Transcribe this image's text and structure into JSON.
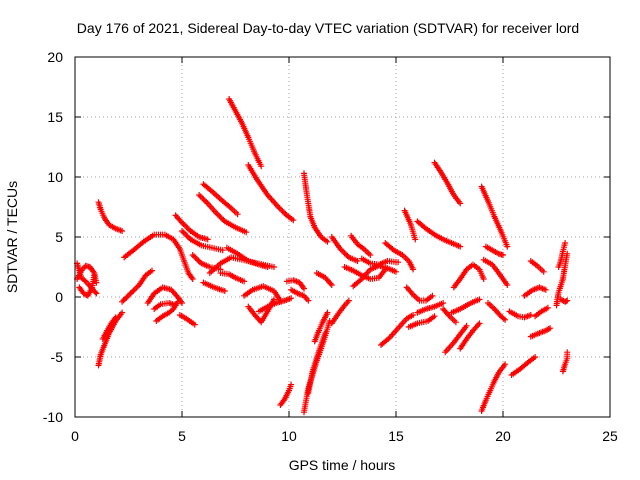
{
  "chart_data": {
    "type": "scatter",
    "title": "Day 176 of 2021, Sidereal Day-to-day VTEC variation (SDTVAR) for receiver lord",
    "xlabel": "GPS time / hours",
    "ylabel": "SDTVAR / TECUs",
    "xlim": [
      0,
      25
    ],
    "ylim": [
      -10,
      20
    ],
    "xticks": [
      "0",
      "5",
      "10",
      "15",
      "20",
      "25"
    ],
    "yticks": [
      "-10",
      "-5",
      "0",
      "5",
      "10",
      "15",
      "20"
    ],
    "xtick_values": [
      0,
      5,
      10,
      15,
      20,
      25
    ],
    "ytick_values": [
      -10,
      -5,
      0,
      5,
      10,
      15,
      20
    ],
    "grid": true,
    "marker": "+",
    "series_color": "#ff0000",
    "segments": [
      [
        [
          0.1,
          2.8
        ],
        [
          0.2,
          2.2
        ],
        [
          0.3,
          1.6
        ],
        [
          0.5,
          1.3
        ],
        [
          0.7,
          0.9
        ],
        [
          0.9,
          0.5
        ],
        [
          1.0,
          0.3
        ]
      ],
      [
        [
          0.1,
          1.5
        ],
        [
          0.3,
          2.2
        ],
        [
          0.5,
          2.6
        ],
        [
          0.7,
          2.5
        ],
        [
          0.9,
          2.0
        ],
        [
          1.0,
          1.2
        ]
      ],
      [
        [
          0.2,
          0.8
        ],
        [
          0.4,
          0.3
        ],
        [
          0.6,
          0.1
        ],
        [
          0.8,
          0.8
        ],
        [
          0.9,
          1.8
        ]
      ],
      [
        [
          1.1,
          7.9
        ],
        [
          1.2,
          7.3
        ],
        [
          1.4,
          6.5
        ],
        [
          1.6,
          6.0
        ],
        [
          1.9,
          5.7
        ],
        [
          2.2,
          5.5
        ]
      ],
      [
        [
          1.1,
          -5.7
        ],
        [
          1.2,
          -4.8
        ],
        [
          1.4,
          -3.9
        ],
        [
          1.6,
          -3.0
        ],
        [
          1.9,
          -2.0
        ],
        [
          2.2,
          -1.3
        ]
      ],
      [
        [
          1.3,
          -3.5
        ],
        [
          1.5,
          -2.8
        ],
        [
          1.7,
          -2.2
        ],
        [
          1.9,
          -1.7
        ]
      ],
      [
        [
          2.2,
          -0.4
        ],
        [
          2.6,
          0.3
        ],
        [
          3.0,
          1.0
        ],
        [
          3.3,
          1.8
        ],
        [
          3.6,
          2.2
        ]
      ],
      [
        [
          2.3,
          3.3
        ],
        [
          2.8,
          4.0
        ],
        [
          3.2,
          4.6
        ],
        [
          3.7,
          5.2
        ],
        [
          4.2,
          5.2
        ],
        [
          4.6,
          4.8
        ],
        [
          4.9,
          4.0
        ],
        [
          5.1,
          3.0
        ],
        [
          5.3,
          2.0
        ],
        [
          5.5,
          1.5
        ]
      ],
      [
        [
          3.4,
          -0.5
        ],
        [
          3.7,
          0.3
        ],
        [
          4.1,
          0.8
        ],
        [
          4.5,
          0.6
        ],
        [
          4.8,
          0.0
        ],
        [
          5.0,
          -0.5
        ]
      ],
      [
        [
          3.7,
          -1.0
        ],
        [
          4.0,
          -0.6
        ],
        [
          4.4,
          -0.5
        ],
        [
          4.7,
          -0.7
        ]
      ],
      [
        [
          3.8,
          -2.0
        ],
        [
          4.1,
          -1.6
        ],
        [
          4.4,
          -1.3
        ],
        [
          4.6,
          -1.0
        ],
        [
          4.8,
          -0.4
        ]
      ],
      [
        [
          4.9,
          -1.5
        ],
        [
          5.2,
          -1.8
        ],
        [
          5.6,
          -2.3
        ]
      ],
      [
        [
          4.7,
          6.8
        ],
        [
          5.0,
          6.2
        ],
        [
          5.4,
          5.5
        ],
        [
          5.8,
          5.0
        ],
        [
          6.2,
          4.8
        ]
      ],
      [
        [
          5.0,
          5.5
        ],
        [
          5.4,
          4.8
        ],
        [
          5.9,
          4.3
        ],
        [
          6.4,
          4.1
        ],
        [
          6.9,
          3.9
        ]
      ],
      [
        [
          5.5,
          3.5
        ],
        [
          5.9,
          2.8
        ],
        [
          6.3,
          2.5
        ],
        [
          6.8,
          2.3
        ]
      ],
      [
        [
          6.0,
          9.4
        ],
        [
          6.4,
          8.8
        ],
        [
          6.9,
          8.0
        ],
        [
          7.3,
          7.4
        ],
        [
          7.6,
          6.9
        ]
      ],
      [
        [
          5.8,
          8.5
        ],
        [
          6.2,
          7.8
        ],
        [
          6.6,
          7.0
        ],
        [
          7.0,
          6.3
        ],
        [
          7.5,
          5.8
        ],
        [
          8.0,
          5.4
        ]
      ],
      [
        [
          6.0,
          1.2
        ],
        [
          6.5,
          0.8
        ],
        [
          7.0,
          0.5
        ]
      ],
      [
        [
          6.3,
          2.0
        ],
        [
          6.8,
          2.8
        ],
        [
          7.3,
          3.3
        ],
        [
          7.8,
          3.1
        ],
        [
          8.3,
          2.9
        ],
        [
          8.8,
          2.7
        ],
        [
          9.3,
          2.5
        ]
      ],
      [
        [
          6.8,
          2.0
        ],
        [
          7.2,
          1.9
        ],
        [
          7.5,
          1.6
        ],
        [
          7.9,
          1.3
        ]
      ],
      [
        [
          7.2,
          16.5
        ],
        [
          7.5,
          15.5
        ],
        [
          7.8,
          14.5
        ],
        [
          8.1,
          13.3
        ],
        [
          8.4,
          12.0
        ],
        [
          8.7,
          10.9
        ]
      ],
      [
        [
          7.1,
          4.1
        ],
        [
          7.6,
          3.6
        ],
        [
          8.1,
          3.0
        ],
        [
          8.6,
          2.7
        ],
        [
          9.0,
          2.5
        ]
      ],
      [
        [
          7.9,
          0.1
        ],
        [
          8.3,
          0.6
        ],
        [
          8.8,
          0.9
        ],
        [
          9.3,
          0.5
        ],
        [
          9.6,
          -0.3
        ]
      ],
      [
        [
          8.1,
          11.0
        ],
        [
          8.5,
          9.8
        ],
        [
          9.0,
          8.5
        ],
        [
          9.5,
          7.5
        ],
        [
          9.9,
          6.8
        ],
        [
          10.2,
          6.4
        ]
      ],
      [
        [
          8.1,
          -0.8
        ],
        [
          8.4,
          -1.5
        ],
        [
          8.7,
          -2.1
        ],
        [
          9.0,
          -1.2
        ],
        [
          9.3,
          -0.2
        ]
      ],
      [
        [
          8.6,
          -1.2
        ],
        [
          9.0,
          -0.8
        ],
        [
          9.4,
          -0.5
        ],
        [
          9.8,
          -0.3
        ],
        [
          10.1,
          -0.1
        ]
      ],
      [
        [
          9.6,
          -9.0
        ],
        [
          9.8,
          -8.5
        ],
        [
          10.0,
          -7.8
        ],
        [
          10.1,
          -7.3
        ]
      ],
      [
        [
          9.9,
          1.3
        ],
        [
          10.2,
          1.4
        ],
        [
          10.5,
          1.2
        ],
        [
          10.7,
          0.7
        ]
      ],
      [
        [
          10.1,
          0.6
        ],
        [
          10.4,
          0.3
        ],
        [
          10.7,
          0.1
        ],
        [
          10.9,
          -0.3
        ]
      ],
      [
        [
          10.7,
          10.3
        ],
        [
          10.8,
          9.0
        ],
        [
          10.9,
          7.8
        ],
        [
          11.0,
          6.7
        ],
        [
          11.2,
          5.8
        ],
        [
          11.5,
          5.0
        ],
        [
          11.8,
          4.6
        ]
      ],
      [
        [
          10.7,
          -9.6
        ],
        [
          10.8,
          -8.6
        ],
        [
          10.9,
          -7.6
        ],
        [
          11.1,
          -6.5
        ],
        [
          11.3,
          -5.3
        ],
        [
          11.5,
          -4.3
        ],
        [
          11.7,
          -3.2
        ],
        [
          11.9,
          -2.0
        ]
      ],
      [
        [
          10.9,
          -8.0
        ],
        [
          11.1,
          -6.2
        ],
        [
          11.4,
          -4.5
        ],
        [
          11.7,
          -3.0
        ]
      ],
      [
        [
          11.2,
          -3.7
        ],
        [
          11.4,
          -2.8
        ],
        [
          11.6,
          -2.0
        ],
        [
          11.8,
          -1.3
        ]
      ],
      [
        [
          11.3,
          2.0
        ],
        [
          11.7,
          1.6
        ],
        [
          12.0,
          1.0
        ]
      ],
      [
        [
          12.0,
          5.0
        ],
        [
          12.4,
          4.0
        ],
        [
          12.8,
          3.3
        ],
        [
          13.2,
          3.0
        ]
      ],
      [
        [
          12.0,
          -2.2
        ],
        [
          12.3,
          -1.4
        ],
        [
          12.6,
          -0.7
        ],
        [
          12.8,
          -0.3
        ]
      ],
      [
        [
          12.6,
          2.5
        ],
        [
          13.0,
          2.2
        ],
        [
          13.4,
          1.8
        ],
        [
          13.8,
          1.5
        ],
        [
          14.2,
          1.6
        ],
        [
          14.5,
          2.3
        ]
      ],
      [
        [
          12.9,
          5.1
        ],
        [
          13.2,
          4.4
        ],
        [
          13.5,
          4.0
        ],
        [
          13.8,
          3.5
        ]
      ],
      [
        [
          13.0,
          0.9
        ],
        [
          13.4,
          1.5
        ],
        [
          13.8,
          2.3
        ],
        [
          14.2,
          2.6
        ],
        [
          14.6,
          2.4
        ],
        [
          15.0,
          2.1
        ]
      ],
      [
        [
          13.4,
          3.2
        ],
        [
          13.8,
          2.8
        ],
        [
          14.2,
          2.7
        ],
        [
          14.6,
          3.0
        ],
        [
          15.1,
          2.9
        ]
      ],
      [
        [
          14.5,
          4.5
        ],
        [
          14.9,
          3.9
        ],
        [
          15.3,
          3.5
        ],
        [
          15.6,
          3.0
        ],
        [
          15.8,
          2.3
        ]
      ],
      [
        [
          14.3,
          -4.0
        ],
        [
          14.7,
          -3.4
        ],
        [
          15.1,
          -2.6
        ],
        [
          15.5,
          -1.8
        ],
        [
          15.8,
          -1.5
        ]
      ],
      [
        [
          15.4,
          7.2
        ],
        [
          15.7,
          6.0
        ],
        [
          15.9,
          4.8
        ]
      ],
      [
        [
          15.5,
          0.8
        ],
        [
          15.8,
          0.2
        ],
        [
          16.1,
          -0.3
        ],
        [
          16.4,
          -0.3
        ],
        [
          16.7,
          0.1
        ]
      ],
      [
        [
          15.6,
          -2.5
        ],
        [
          16.0,
          -2.2
        ],
        [
          16.5,
          -2.0
        ],
        [
          16.8,
          -1.6
        ]
      ],
      [
        [
          16.0,
          -1.3
        ],
        [
          16.4,
          -1.0
        ],
        [
          16.8,
          -0.8
        ],
        [
          17.2,
          -0.5
        ]
      ],
      [
        [
          16.0,
          6.3
        ],
        [
          16.4,
          5.7
        ],
        [
          16.8,
          5.2
        ],
        [
          17.2,
          4.8
        ],
        [
          17.6,
          4.5
        ],
        [
          18.0,
          4.2
        ]
      ],
      [
        [
          16.8,
          11.2
        ],
        [
          17.1,
          10.4
        ],
        [
          17.4,
          9.5
        ],
        [
          17.7,
          8.5
        ],
        [
          18.0,
          7.8
        ]
      ],
      [
        [
          17.2,
          -1.0
        ],
        [
          17.5,
          -1.6
        ],
        [
          17.8,
          -2.1
        ]
      ],
      [
        [
          17.3,
          -4.6
        ],
        [
          17.7,
          -3.8
        ],
        [
          18.0,
          -3.1
        ],
        [
          18.3,
          -2.4
        ]
      ],
      [
        [
          17.6,
          -1.3
        ],
        [
          18.0,
          -1.0
        ],
        [
          18.5,
          -0.5
        ],
        [
          18.9,
          -0.2
        ]
      ],
      [
        [
          17.7,
          0.8
        ],
        [
          18.0,
          1.5
        ],
        [
          18.3,
          2.3
        ],
        [
          18.6,
          2.7
        ],
        [
          18.9,
          2.3
        ],
        [
          19.1,
          1.5
        ]
      ],
      [
        [
          18.0,
          -4.3
        ],
        [
          18.3,
          -3.5
        ],
        [
          18.6,
          -2.8
        ],
        [
          18.9,
          -2.2
        ]
      ],
      [
        [
          19.0,
          9.2
        ],
        [
          19.3,
          8.0
        ],
        [
          19.6,
          6.7
        ],
        [
          19.9,
          5.5
        ],
        [
          20.2,
          4.2
        ]
      ],
      [
        [
          19.0,
          -9.5
        ],
        [
          19.2,
          -8.6
        ],
        [
          19.4,
          -7.8
        ],
        [
          19.6,
          -7.0
        ],
        [
          19.8,
          -6.3
        ],
        [
          20.1,
          -5.6
        ]
      ],
      [
        [
          19.1,
          3.1
        ],
        [
          19.5,
          2.7
        ],
        [
          19.8,
          2.0
        ],
        [
          20.2,
          1.0
        ]
      ],
      [
        [
          19.2,
          4.2
        ],
        [
          19.5,
          3.9
        ],
        [
          19.8,
          3.6
        ],
        [
          20.0,
          3.5
        ]
      ],
      [
        [
          19.3,
          -0.5
        ],
        [
          19.6,
          -1.0
        ],
        [
          19.9,
          -1.6
        ],
        [
          20.1,
          -1.9
        ]
      ],
      [
        [
          20.3,
          -1.2
        ],
        [
          20.7,
          -1.6
        ],
        [
          21.0,
          -1.7
        ],
        [
          21.3,
          -1.5
        ]
      ],
      [
        [
          20.4,
          -6.5
        ],
        [
          20.8,
          -6.0
        ],
        [
          21.2,
          -5.4
        ],
        [
          21.5,
          -5.0
        ]
      ],
      [
        [
          21.0,
          0.1
        ],
        [
          21.4,
          0.6
        ],
        [
          21.7,
          0.8
        ],
        [
          22.0,
          0.6
        ]
      ],
      [
        [
          21.3,
          3.0
        ],
        [
          21.6,
          2.6
        ],
        [
          21.9,
          2.1
        ]
      ],
      [
        [
          21.5,
          -1.6
        ],
        [
          21.8,
          -1.2
        ],
        [
          22.1,
          -0.9
        ]
      ],
      [
        [
          21.3,
          -3.3
        ],
        [
          21.7,
          -3.0
        ],
        [
          22.0,
          -2.8
        ],
        [
          22.2,
          -2.6
        ]
      ],
      [
        [
          22.5,
          -0.7
        ],
        [
          22.6,
          0.4
        ],
        [
          22.8,
          1.5
        ],
        [
          22.9,
          2.6
        ],
        [
          23.0,
          3.6
        ]
      ],
      [
        [
          22.6,
          2.5
        ],
        [
          22.7,
          3.0
        ],
        [
          22.8,
          3.8
        ],
        [
          22.9,
          4.5
        ]
      ],
      [
        [
          22.7,
          -0.2
        ],
        [
          22.9,
          -0.4
        ],
        [
          23.0,
          -0.3
        ]
      ],
      [
        [
          22.8,
          -6.2
        ],
        [
          22.9,
          -5.6
        ],
        [
          23.0,
          -5.1
        ],
        [
          23.0,
          -4.6
        ]
      ]
    ]
  }
}
